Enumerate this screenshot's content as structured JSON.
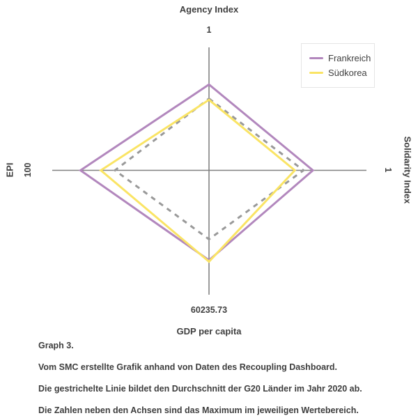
{
  "chart_data": {
    "type": "radar",
    "axes": [
      {
        "id": "agency",
        "label": "Agency Index",
        "max": 1,
        "max_label": "1",
        "direction": "up"
      },
      {
        "id": "solidarity",
        "label": "Solidarity Index",
        "max": 1,
        "max_label": "1",
        "direction": "right"
      },
      {
        "id": "gdp",
        "label": "GDP per capita",
        "max": 60235.73,
        "max_label": "60235.73",
        "direction": "down"
      },
      {
        "id": "epi",
        "label": "EPI",
        "max": 100,
        "max_label": "100",
        "direction": "left"
      }
    ],
    "series": [
      {
        "name": "G20 Durchschnitt 2020",
        "color": "#999999",
        "dash": "dashed",
        "in_legend": false,
        "values": {
          "agency": 0.585,
          "solidarity": 0.6,
          "gdp": 33300,
          "epi": 60
        }
      },
      {
        "name": "Frankreich",
        "color": "#b287bd",
        "dash": "solid",
        "in_legend": true,
        "values": {
          "agency": 0.7,
          "solidarity": 0.66,
          "gdp": 43400,
          "epi": 82
        }
      },
      {
        "name": "Südkorea",
        "color": "#fae464",
        "dash": "solid",
        "in_legend": true,
        "values": {
          "agency": 0.575,
          "solidarity": 0.545,
          "gdp": 44100,
          "epi": 69
        }
      }
    ],
    "layout_hints": {
      "grid": false,
      "legend_position": "top-right",
      "axis_color": "#808080",
      "note": "Diamond radar, 4 axes, each axis scaled to its own maximum"
    }
  },
  "captions": [
    "Graph 3.",
    "Vom SMC erstellte Grafik anhand von Daten des Recoupling Dashboard.",
    "Die gestrichelte Linie bildet den Durchschnitt der G20 Länder im Jahr 2020 ab.",
    "Die Zahlen neben den Achsen sind das Maximum im jeweiligen Wertebereich."
  ]
}
